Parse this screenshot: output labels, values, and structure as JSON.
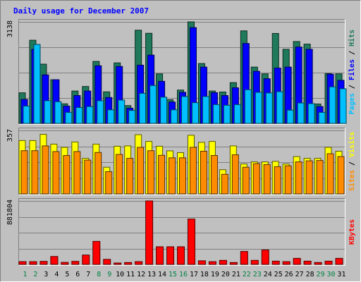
{
  "chart_data": {
    "type": "bar",
    "title": "Daily usage for December 2007",
    "x": [
      "1",
      "2",
      "3",
      "4",
      "5",
      "6",
      "7",
      "8",
      "9",
      "10",
      "11",
      "12",
      "13",
      "14",
      "15",
      "16",
      "17",
      "18",
      "19",
      "20",
      "21",
      "22",
      "23",
      "24",
      "25",
      "26",
      "27",
      "28",
      "29",
      "30",
      "31"
    ],
    "weekend_days": [
      "1",
      "2",
      "8",
      "9",
      "15",
      "16",
      "22",
      "23",
      "29",
      "30"
    ],
    "panels": [
      {
        "name": "top",
        "ymax_label": "3138",
        "ymax": 3138,
        "series": [
          {
            "name": "Hits",
            "color": "#1f7a5c",
            "values": [
              945,
              2570,
              1830,
              1350,
              605,
              1000,
              1140,
              1915,
              975,
              1870,
              550,
              2880,
              2785,
              1530,
              730,
              1030,
              3138,
              1850,
              1000,
              970,
              1260,
              2860,
              1740,
              1530,
              2780,
              2290,
              2530,
              2450,
              600,
              1540,
              1530
            ]
          },
          {
            "name": "Files",
            "color": "#0000ff",
            "values": [
              740,
              2290,
              1500,
              1350,
              535,
              860,
              1000,
              1780,
              800,
              1760,
              470,
              1800,
              2110,
              1300,
              660,
              960,
              2960,
              1740,
              950,
              860,
              1100,
              2470,
              1610,
              1380,
              1710,
              1740,
              2360,
              2290,
              520,
              1520,
              1330
            ]
          },
          {
            "name": "Pages",
            "color": "#00bfff",
            "values": [
              535,
              2440,
              700,
              670,
              340,
              490,
              520,
              700,
              420,
              720,
              400,
              930,
              1170,
              810,
              420,
              830,
              640,
              830,
              580,
              560,
              580,
              1040,
              960,
              940,
              980,
              410,
              630,
              610,
              340,
              1130,
              1070
            ]
          }
        ],
        "side_label": [
          "Pages",
          "Files",
          "Hits"
        ]
      },
      {
        "name": "middle",
        "ymax_label": "357",
        "ymax": 357,
        "series": [
          {
            "name": "Visits",
            "color": "#ffff00",
            "values": [
              300,
              300,
              335,
              280,
              262,
              292,
              200,
              280,
              150,
              268,
              270,
              333,
              295,
              268,
              242,
              232,
              330,
              290,
              295,
              136,
              270,
              168,
              180,
              180,
              183,
              168,
              210,
              200,
              200,
              262,
              240
            ]
          },
          {
            "name": "Sites",
            "color": "#ff8c00",
            "values": [
              243,
              243,
              270,
              238,
              216,
              238,
              190,
              233,
              125,
              222,
              200,
              262,
              243,
              217,
              203,
              203,
              262,
              240,
              216,
              110,
              220,
              150,
              170,
              165,
              153,
              158,
              180,
              186,
              188,
              226,
              210
            ]
          }
        ],
        "side_label": [
          "Sites",
          "Visits"
        ]
      },
      {
        "name": "bottom",
        "ymax_label": "881804",
        "ymax": 881804,
        "series": [
          {
            "name": "KBytes",
            "color": "#ff0000",
            "values": [
              38000,
              38000,
              42000,
              110000,
              28000,
              42000,
              130000,
              320000,
              70000,
              19000,
              26000,
              38000,
              881804,
              245000,
              245000,
              245000,
              630000,
              50000,
              38000,
              56000,
              26000,
              180000,
              56000,
              200000,
              45000,
              38000,
              84000,
              45000,
              26000,
              45000,
              84000
            ]
          }
        ],
        "side_label": [
          "KBytes"
        ]
      }
    ],
    "colors": {
      "background": "#c0c0c0",
      "plot_background": "#c0c0c0",
      "gridline": "#808080",
      "title": "#0000ff",
      "weekday_label": "#000000",
      "weekend_label": "#008040",
      "border_light": "#ffffff",
      "border_dark": "#808080"
    },
    "grid": true
  }
}
